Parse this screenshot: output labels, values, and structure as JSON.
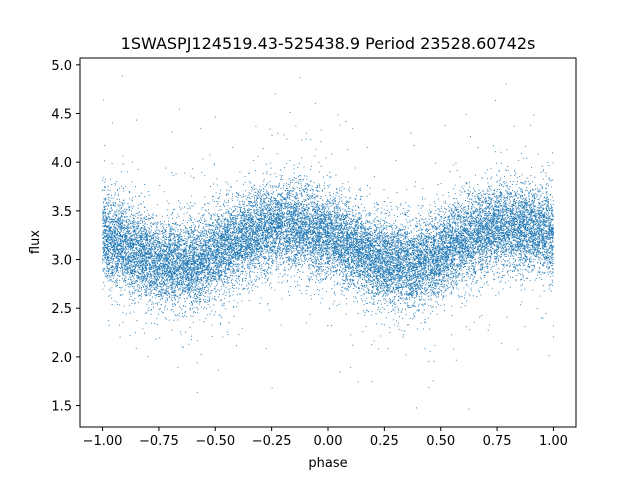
{
  "chart_data": {
    "type": "scatter",
    "title": "1SWASPJ124519.43-525438.9 Period 23528.60742s",
    "xlabel": "phase",
    "ylabel": "flux",
    "xlim": [
      -1.1,
      1.1
    ],
    "ylim": [
      1.28,
      5.07
    ],
    "xticks": [
      -1.0,
      -0.75,
      -0.5,
      -0.25,
      0.0,
      0.25,
      0.5,
      0.75,
      1.0
    ],
    "xtick_labels": [
      "−1.00",
      "−0.75",
      "−0.50",
      "−0.25",
      "0.00",
      "0.25",
      "0.50",
      "0.75",
      "1.00"
    ],
    "yticks": [
      1.5,
      2.0,
      2.5,
      3.0,
      3.5,
      4.0,
      4.5,
      5.0
    ],
    "ytick_labels": [
      "1.5",
      "2.0",
      "2.5",
      "3.0",
      "3.5",
      "4.0",
      "4.5",
      "5.0"
    ],
    "grid": false,
    "marker_color": "#1f77b4",
    "series": [
      {
        "profile_phase": [
          -1.0,
          -0.9,
          -0.8,
          -0.75,
          -0.7,
          -0.65,
          -0.6,
          -0.5,
          -0.4,
          -0.3,
          -0.25,
          -0.2,
          -0.1,
          0.0,
          0.1,
          0.2,
          0.25,
          0.3,
          0.35,
          0.4,
          0.5,
          0.6,
          0.7,
          0.75,
          0.8,
          0.9,
          1.0
        ],
        "profile_flux": [
          3.25,
          3.15,
          3.0,
          2.97,
          2.95,
          2.94,
          2.95,
          3.05,
          3.2,
          3.3,
          3.33,
          3.34,
          3.32,
          3.25,
          3.15,
          3.02,
          2.97,
          2.95,
          2.94,
          2.95,
          3.05,
          3.2,
          3.3,
          3.33,
          3.34,
          3.32,
          3.25
        ],
        "scatter_sigma": 0.22,
        "n_points": 22000
      }
    ]
  }
}
